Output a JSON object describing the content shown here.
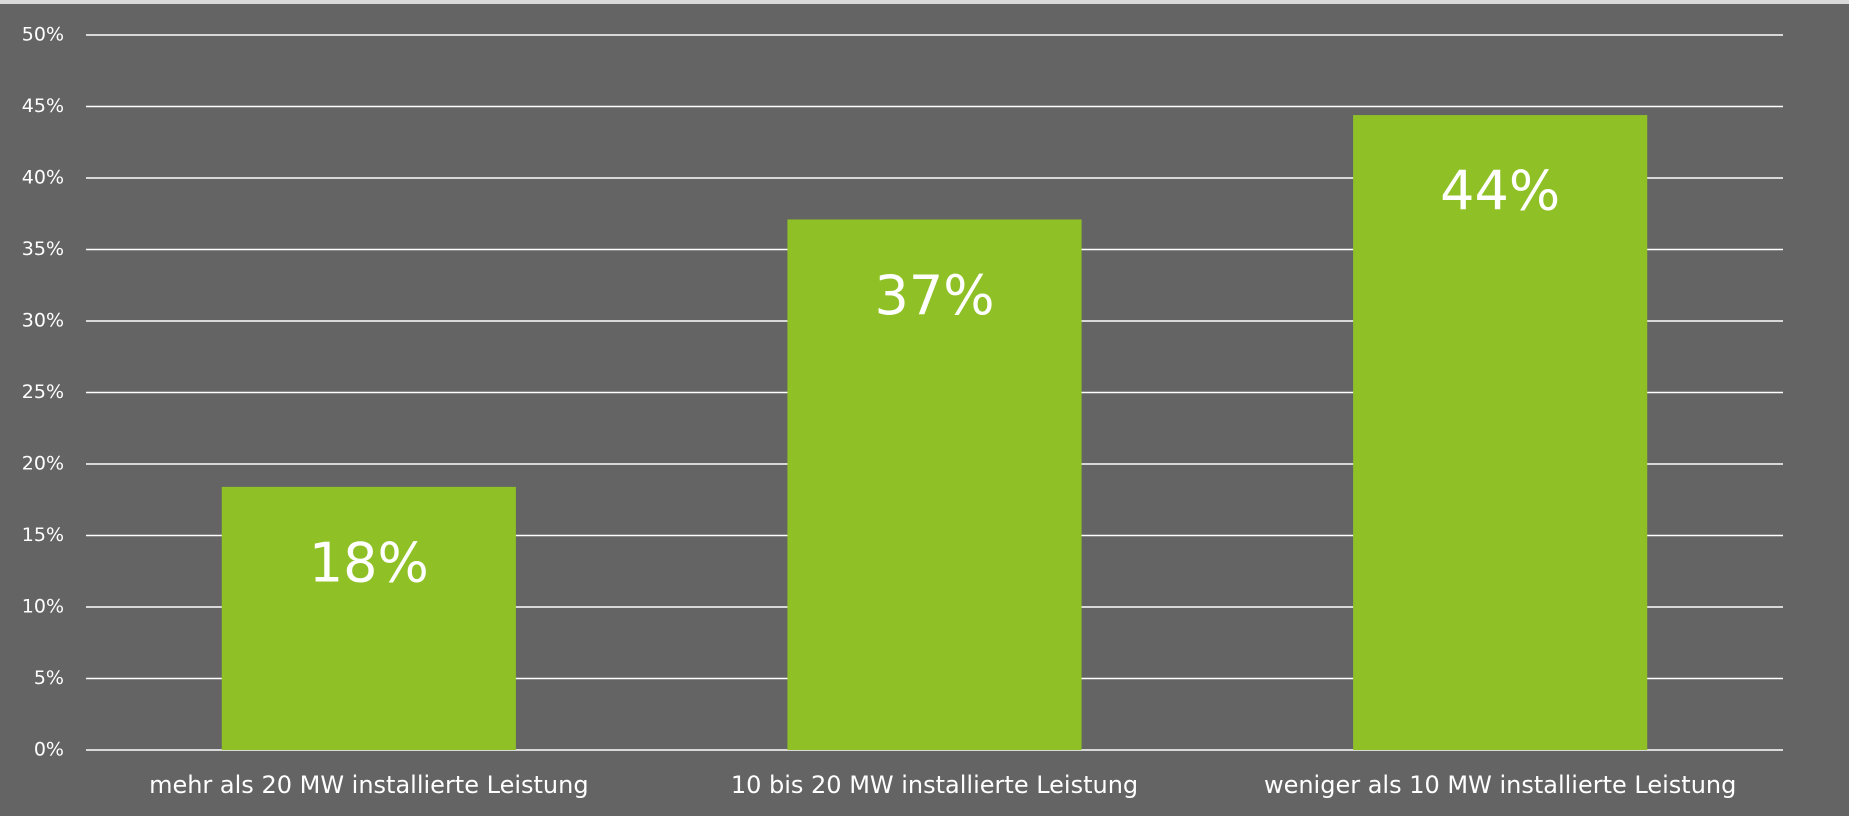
{
  "chart_data": {
    "type": "bar",
    "categories": [
      "mehr als 20 MW installierte Leistung",
      "10 bis 20 MW installierte Leistung",
      "weniger als 10 MW installierte Leistung"
    ],
    "values": [
      18.4,
      37.1,
      44.4
    ],
    "value_labels": [
      "18%",
      "37%",
      "44%"
    ],
    "color": "#8fc126",
    "ylim": [
      0,
      50
    ],
    "yticks": [
      {
        "value": 0,
        "label": "0%"
      },
      {
        "value": 5,
        "label": "5%"
      },
      {
        "value": 10,
        "label": "10%"
      },
      {
        "value": 15,
        "label": "15%"
      },
      {
        "value": 20,
        "label": "20%"
      },
      {
        "value": 25,
        "label": "25%"
      },
      {
        "value": 30,
        "label": "30%"
      },
      {
        "value": 35,
        "label": "35%"
      },
      {
        "value": 40,
        "label": "40%"
      },
      {
        "value": 45,
        "label": "45%"
      },
      {
        "value": 50,
        "label": "50%"
      }
    ],
    "grid": true
  }
}
